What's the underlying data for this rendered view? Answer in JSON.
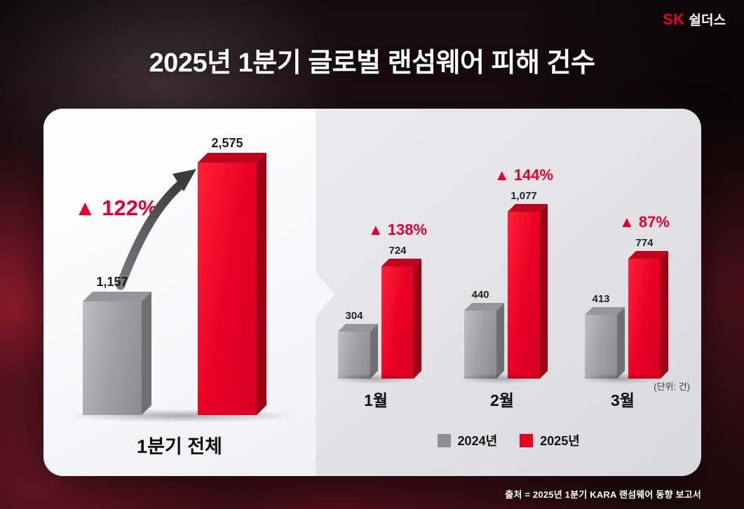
{
  "brand": {
    "sk": "SK",
    "name": "쉴더스"
  },
  "header": {
    "title": "2025년 1분기 글로벌 랜섬웨어 피해 건수"
  },
  "footer": {
    "source": "출처 = 2025년 1분기 KARA 랜섬웨어 동향 보고서"
  },
  "colors": {
    "accent_red": "#e60023",
    "bar_gray": "#9a9a9c",
    "delta_red": "#e50032"
  },
  "chart_data": [
    {
      "type": "bar",
      "title": "1분기 전체",
      "categories": [
        "2024년",
        "2025년"
      ],
      "values": [
        1157,
        2575
      ],
      "value_labels": [
        "1,157",
        "2,575"
      ],
      "delta_label": "▲ 122%"
    },
    {
      "type": "bar",
      "categories": [
        "1월",
        "2월",
        "3월"
      ],
      "series": [
        {
          "name": "2024년",
          "values": [
            304,
            440,
            413
          ],
          "value_labels": [
            "304",
            "440",
            "413"
          ]
        },
        {
          "name": "2025년",
          "values": [
            724,
            1077,
            774
          ],
          "value_labels": [
            "724",
            "1,077",
            "774"
          ]
        }
      ],
      "delta_labels": [
        "▲ 138%",
        "▲ 144%",
        "▲ 87%"
      ],
      "unit_label": "(단위: 건)",
      "legend": [
        {
          "label": "2024년",
          "color": "#8f8f92"
        },
        {
          "label": "2025년",
          "color": "#e60023"
        }
      ]
    }
  ]
}
